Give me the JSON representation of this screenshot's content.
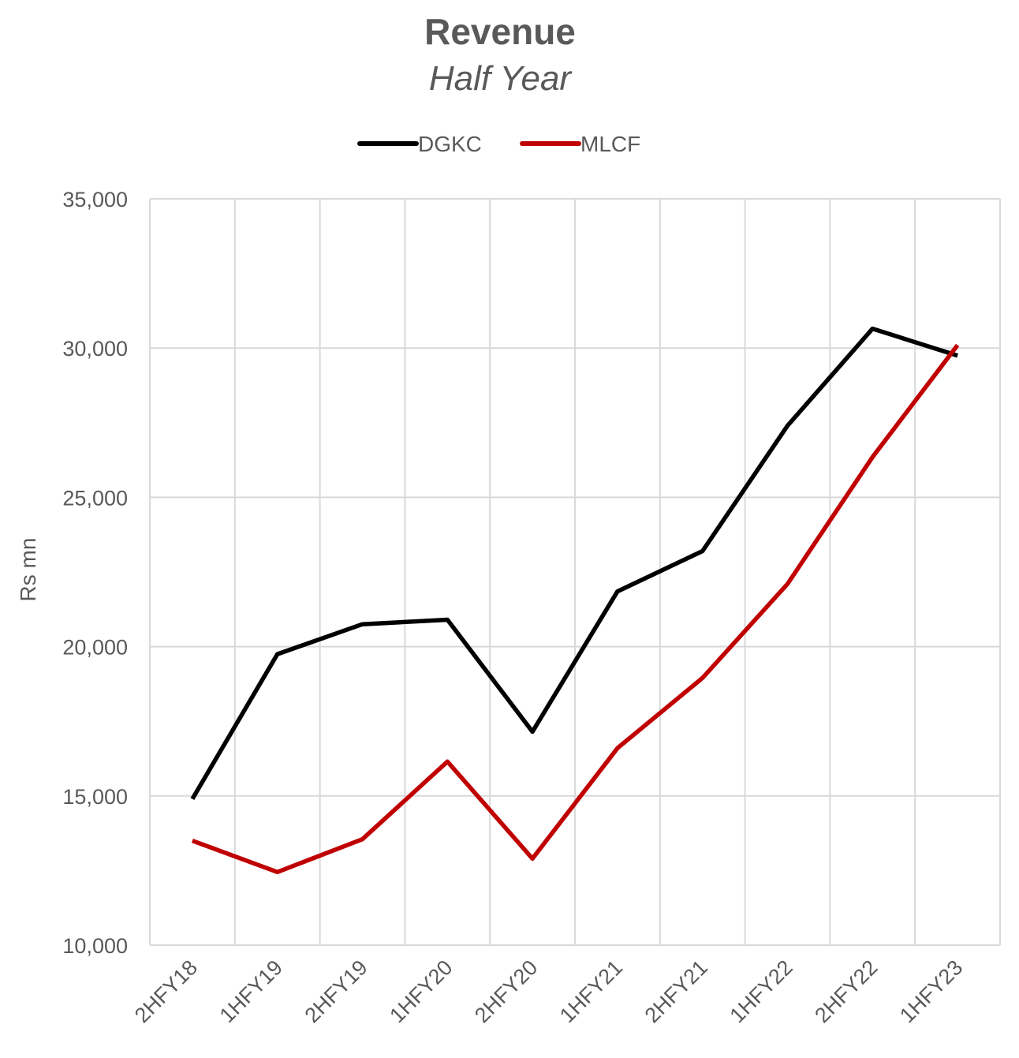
{
  "chart_data": {
    "type": "line",
    "title": "Revenue",
    "subtitle": "Half Year",
    "ylabel": "Rs mn",
    "xlabel": "",
    "ylim": [
      10000,
      35000
    ],
    "yticks": [
      10000,
      15000,
      20000,
      25000,
      30000,
      35000
    ],
    "ytick_labels": [
      "10,000",
      "15,000",
      "20,000",
      "25,000",
      "30,000",
      "35,000"
    ],
    "categories": [
      "2HFY18",
      "1HFY19",
      "2HFY19",
      "1HFY20",
      "2HFY20",
      "1HFY21",
      "2HFY21",
      "1HFY22",
      "2HFY22",
      "1HFY23"
    ],
    "grid": true,
    "legend_position": "top-center",
    "series": [
      {
        "name": "DGKC",
        "color": "#000000",
        "values": [
          14900,
          19750,
          20750,
          20900,
          17150,
          21850,
          23200,
          27400,
          30650,
          29750
        ]
      },
      {
        "name": "MLCF",
        "color": "#c00000",
        "values": [
          13500,
          12450,
          13550,
          16150,
          12900,
          16600,
          18950,
          22100,
          26350,
          30100
        ]
      }
    ]
  }
}
